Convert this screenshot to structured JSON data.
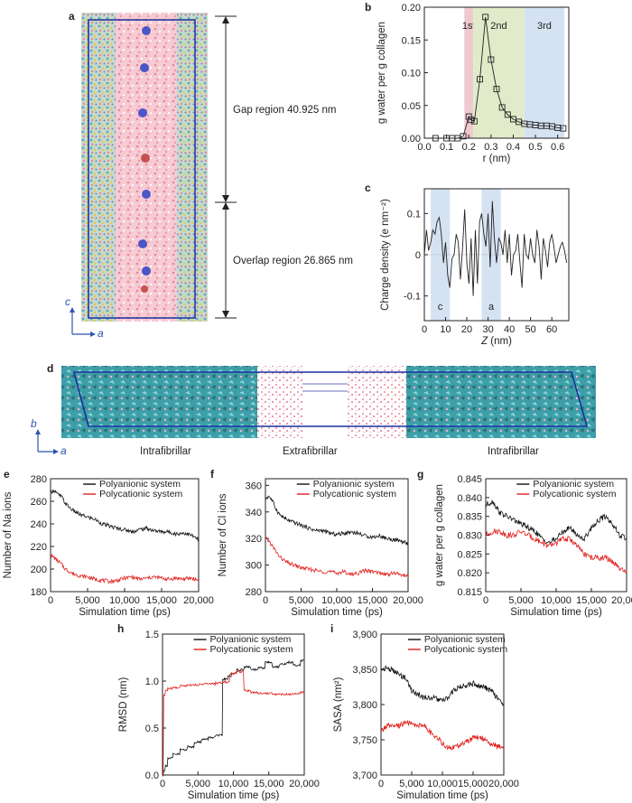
{
  "panel_labels": {
    "a": "a",
    "b": "b",
    "c": "c",
    "d": "d",
    "e": "e",
    "f": "f",
    "g": "g",
    "h": "h",
    "i": "i"
  },
  "panel_a": {
    "gap_label": "Gap region 40.925 nm",
    "overlap_label": "Overlap region 26.865 nm",
    "axis_c": "c",
    "axis_a": "a",
    "colors": {
      "water": "#f4b8c4",
      "protein": "#6ab3c9",
      "ion_blue": "#4a55c8",
      "ion_red": "#c85050",
      "box": "#1a2fa0"
    }
  },
  "panel_d": {
    "axis_b": "b",
    "axis_a": "a",
    "left_label": "Intrafibrillar",
    "mid_label": "Extrafibrillar",
    "right_label": "Intrafibrillar"
  },
  "chart_data": [
    {
      "id": "b",
      "type": "line",
      "xlabel": "r (nm)",
      "ylabel": "g water per g collagen",
      "xlim": [
        0,
        0.65
      ],
      "ylim": [
        0,
        0.2
      ],
      "xticks": [
        0.0,
        0.1,
        0.2,
        0.3,
        0.4,
        0.5,
        0.6
      ],
      "yticks": [
        0.0,
        0.05,
        0.1,
        0.15,
        0.2
      ],
      "regions": [
        {
          "label": "1st",
          "x0": 0.18,
          "x1": 0.22,
          "color": "#efc9d0"
        },
        {
          "label": "2nd",
          "x0": 0.22,
          "x1": 0.45,
          "color": "#e2ebc9"
        },
        {
          "label": "3rd",
          "x0": 0.45,
          "x1": 0.63,
          "color": "#d5e2f2"
        }
      ],
      "x": [
        0.05,
        0.1,
        0.125,
        0.15,
        0.175,
        0.2,
        0.21,
        0.225,
        0.25,
        0.275,
        0.3,
        0.325,
        0.35,
        0.375,
        0.4,
        0.425,
        0.45,
        0.475,
        0.5,
        0.525,
        0.55,
        0.575,
        0.6,
        0.625
      ],
      "values": [
        0.0,
        0.0,
        0.0,
        0.0,
        0.003,
        0.033,
        0.028,
        0.026,
        0.09,
        0.185,
        0.12,
        0.075,
        0.047,
        0.036,
        0.029,
        0.025,
        0.022,
        0.021,
        0.02,
        0.019,
        0.019,
        0.018,
        0.016,
        0.015
      ],
      "color": "#222222"
    },
    {
      "id": "c",
      "type": "line",
      "xlabel": "Z (nm)",
      "ylabel": "Charge density (e nm⁻²)",
      "xlim": [
        0,
        68
      ],
      "ylim": [
        -0.16,
        0.16
      ],
      "xticks": [
        0,
        10,
        20,
        30,
        40,
        50,
        60
      ],
      "yticks": [
        -0.1,
        0,
        0.1
      ],
      "regions": [
        {
          "label": "c",
          "x0": 3,
          "x1": 12,
          "color": "#d5e2f2"
        },
        {
          "label": "a",
          "x0": 27,
          "x1": 36,
          "color": "#d5e2f2"
        }
      ],
      "x": [
        0,
        1,
        2,
        3,
        4,
        5,
        6,
        7,
        8,
        9,
        10,
        11,
        12,
        13,
        14,
        15,
        16,
        17,
        18,
        19,
        20,
        21,
        22,
        23,
        24,
        25,
        26,
        27,
        28,
        29,
        30,
        31,
        32,
        33,
        34,
        35,
        36,
        37,
        38,
        39,
        40,
        41,
        42,
        43,
        44,
        45,
        46,
        47,
        48,
        49,
        50,
        51,
        52,
        53,
        54,
        55,
        56,
        57,
        58,
        59,
        60,
        61,
        62,
        63,
        64,
        65,
        66,
        67
      ],
      "values": [
        0.0,
        0.06,
        0.01,
        0.03,
        0.06,
        0.05,
        0.08,
        0.09,
        0.05,
        -0.02,
        0.03,
        -0.05,
        -0.08,
        -0.01,
        0.0,
        0.05,
        0.03,
        -0.06,
        0.02,
        0.11,
        -0.02,
        -0.07,
        0.04,
        -0.1,
        0.06,
        -0.07,
        0.08,
        0.1,
        0.05,
        0.02,
        0.1,
        -0.03,
        0.13,
        0.04,
        -0.02,
        0.04,
        0.03,
        0.0,
        0.06,
        -0.02,
        0.05,
        -0.05,
        0.0,
        0.01,
        0.05,
        -0.02,
        -0.08,
        0.05,
        0.0,
        -0.01,
        0.04,
        0.0,
        -0.02,
        0.06,
        0.02,
        -0.06,
        0.04,
        0.01,
        -0.03,
        0.03,
        0.05,
        0.02,
        -0.02,
        0.0,
        0.02,
        0.03,
        0.01,
        -0.02
      ],
      "color": "#222222"
    },
    {
      "id": "e",
      "type": "line",
      "xlabel": "Simulation time (ps)",
      "ylabel": "Number of Na ions",
      "xlim": [
        0,
        20000
      ],
      "ylim": [
        180,
        280
      ],
      "xticks": [
        0,
        5000,
        10000,
        15000,
        20000
      ],
      "xticklabels": [
        "0",
        "5,000",
        "10,000",
        "15,000",
        "20,000"
      ],
      "yticks": [
        180,
        200,
        220,
        240,
        260,
        280
      ],
      "series": [
        {
          "name": "Polyanionic system",
          "color": "#111111",
          "x": [
            0,
            500,
            1000,
            1500,
            2000,
            3000,
            4000,
            5000,
            6000,
            7000,
            8000,
            9000,
            10000,
            11000,
            12000,
            13000,
            14000,
            15000,
            16000,
            17000,
            18000,
            19000,
            19500,
            20000
          ],
          "values": [
            268,
            270,
            266,
            264,
            258,
            252,
            248,
            246,
            244,
            240,
            238,
            236,
            235,
            233,
            235,
            236,
            234,
            233,
            233,
            231,
            232,
            230,
            228,
            226
          ]
        },
        {
          "name": "Polycationic system",
          "color": "#e0201d",
          "x": [
            0,
            500,
            1000,
            1500,
            2000,
            3000,
            4000,
            5000,
            6000,
            7000,
            8000,
            9000,
            10000,
            11000,
            12000,
            13000,
            14000,
            15000,
            16000,
            17000,
            18000,
            19000,
            19500,
            20000
          ],
          "values": [
            212,
            210,
            207,
            204,
            200,
            196,
            194,
            193,
            191,
            190,
            189,
            190,
            192,
            193,
            191,
            192,
            193,
            192,
            191,
            192,
            191,
            192,
            191,
            190
          ]
        }
      ]
    },
    {
      "id": "f",
      "type": "line",
      "xlabel": "Simulation time (ps)",
      "ylabel": "Number of Cl ions",
      "xlim": [
        0,
        20000
      ],
      "ylim": [
        280,
        365
      ],
      "xticks": [
        0,
        5000,
        10000,
        15000,
        20000
      ],
      "xticklabels": [
        "0",
        "5,000",
        "10,000",
        "15,000",
        "20,000"
      ],
      "yticks": [
        280,
        300,
        320,
        340,
        360
      ],
      "series": [
        {
          "name": "Polyanionic system",
          "color": "#111111",
          "x": [
            0,
            500,
            1000,
            1500,
            2000,
            3000,
            4000,
            5000,
            6000,
            7000,
            8000,
            9000,
            10000,
            11000,
            12000,
            13000,
            14000,
            15000,
            16000,
            17000,
            18000,
            19000,
            19500,
            20000
          ],
          "values": [
            350,
            352,
            348,
            342,
            338,
            334,
            332,
            330,
            328,
            326,
            326,
            324,
            323,
            324,
            325,
            324,
            322,
            321,
            322,
            320,
            319,
            318,
            317,
            316
          ]
        },
        {
          "name": "Polycationic system",
          "color": "#e0201d",
          "x": [
            0,
            500,
            1000,
            1500,
            2000,
            3000,
            4000,
            5000,
            6000,
            7000,
            8000,
            9000,
            10000,
            11000,
            12000,
            13000,
            14000,
            15000,
            16000,
            17000,
            18000,
            19000,
            19500,
            20000
          ],
          "values": [
            320,
            318,
            314,
            310,
            306,
            302,
            300,
            298,
            297,
            296,
            295,
            295,
            294,
            295,
            293,
            294,
            296,
            295,
            294,
            293,
            294,
            293,
            292,
            292
          ]
        }
      ]
    },
    {
      "id": "g",
      "type": "line",
      "xlabel": "Simulation time (ps)",
      "ylabel": "g water per g collagen",
      "xlim": [
        0,
        20000
      ],
      "ylim": [
        0.815,
        0.845
      ],
      "xticks": [
        0,
        5000,
        10000,
        15000,
        20000
      ],
      "xticklabels": [
        "0",
        "5,000",
        "10,000",
        "15,000",
        "20,000"
      ],
      "yticks": [
        0.815,
        0.82,
        0.825,
        0.83,
        0.835,
        0.84,
        0.845
      ],
      "series": [
        {
          "name": "Polyanionic system",
          "color": "#111111",
          "x": [
            0,
            1000,
            2000,
            3000,
            4000,
            5000,
            6000,
            7000,
            8000,
            9000,
            10000,
            11000,
            12000,
            13000,
            14000,
            15000,
            16000,
            17000,
            18000,
            19000,
            20000
          ],
          "values": [
            0.838,
            0.839,
            0.836,
            0.835,
            0.834,
            0.833,
            0.832,
            0.831,
            0.829,
            0.828,
            0.829,
            0.831,
            0.832,
            0.83,
            0.829,
            0.832,
            0.834,
            0.835,
            0.833,
            0.83,
            0.829
          ]
        },
        {
          "name": "Polycationic system",
          "color": "#e0201d",
          "x": [
            0,
            1000,
            2000,
            3000,
            4000,
            5000,
            6000,
            7000,
            8000,
            9000,
            10000,
            11000,
            12000,
            13000,
            14000,
            15000,
            16000,
            17000,
            18000,
            19000,
            20000
          ],
          "values": [
            0.83,
            0.831,
            0.831,
            0.83,
            0.83,
            0.831,
            0.83,
            0.829,
            0.828,
            0.827,
            0.828,
            0.829,
            0.829,
            0.827,
            0.825,
            0.824,
            0.824,
            0.824,
            0.823,
            0.821,
            0.82
          ]
        }
      ]
    },
    {
      "id": "h",
      "type": "line",
      "xlabel": "Simulation time (ps)",
      "ylabel": "RMSD (nm)",
      "xlim": [
        0,
        20000
      ],
      "ylim": [
        0,
        1.5
      ],
      "xticks": [
        0,
        5000,
        10000,
        15000,
        20000
      ],
      "xticklabels": [
        "0",
        "5,000",
        "10,000",
        "15,000",
        "20,000"
      ],
      "yticks": [
        0,
        0.5,
        1.0,
        1.5
      ],
      "yticklabels": [
        "0.0",
        "0.5",
        "1.0",
        "1.5"
      ],
      "series": [
        {
          "name": "Polyanionic system",
          "color": "#111111",
          "x": [
            0,
            200,
            500,
            1000,
            2000,
            3000,
            4000,
            5000,
            6000,
            7000,
            8000,
            9000,
            9500,
            10000,
            11000,
            12000,
            13000,
            14000,
            15000,
            16000,
            17000,
            18000,
            19000,
            20000
          ],
          "values": [
            0.0,
            0.05,
            0.1,
            0.18,
            0.22,
            0.27,
            0.3,
            0.35,
            0.38,
            0.4,
            0.42,
            1.02,
            1.05,
            1.08,
            1.12,
            1.15,
            1.12,
            1.14,
            1.2,
            1.15,
            1.18,
            1.2,
            1.17,
            1.22
          ]
        },
        {
          "name": "Polycationic system",
          "color": "#e0201d",
          "x": [
            0,
            200,
            500,
            1000,
            2000,
            3000,
            4000,
            5000,
            6000,
            7000,
            8000,
            9000,
            10000,
            11000,
            12000,
            13000,
            14000,
            15000,
            16000,
            17000,
            18000,
            19000,
            20000
          ],
          "values": [
            0.0,
            0.85,
            0.9,
            0.92,
            0.93,
            0.95,
            0.96,
            0.96,
            0.97,
            0.97,
            0.98,
            0.99,
            1.08,
            1.1,
            0.9,
            0.88,
            0.87,
            0.87,
            0.86,
            0.86,
            0.86,
            0.87,
            0.88
          ]
        }
      ]
    },
    {
      "id": "i",
      "type": "line",
      "xlabel": "Simulation time (ps)",
      "ylabel": "SASA (nm²)",
      "xlim": [
        0,
        20000
      ],
      "ylim": [
        3700,
        3900
      ],
      "xticks": [
        0,
        5000,
        10000,
        15000,
        20000
      ],
      "xticklabels": [
        "0",
        "5,000",
        "10,000",
        "15,000",
        "20,000"
      ],
      "yticks": [
        3700,
        3750,
        3800,
        3850,
        3900
      ],
      "yticklabels": [
        "3,700",
        "3,750",
        "3,800",
        "3,850",
        "3,900"
      ],
      "series": [
        {
          "name": "Polyanionic system",
          "color": "#111111",
          "x": [
            0,
            1000,
            2000,
            3000,
            4000,
            5000,
            6000,
            7000,
            8000,
            9000,
            10000,
            11000,
            12000,
            13000,
            14000,
            15000,
            16000,
            17000,
            18000,
            19000,
            20000
          ],
          "values": [
            3850,
            3852,
            3848,
            3842,
            3838,
            3820,
            3815,
            3810,
            3810,
            3808,
            3805,
            3810,
            3822,
            3825,
            3828,
            3830,
            3826,
            3824,
            3820,
            3808,
            3800
          ]
        },
        {
          "name": "Polycationic system",
          "color": "#e0201d",
          "x": [
            0,
            1000,
            2000,
            3000,
            4000,
            5000,
            6000,
            7000,
            8000,
            9000,
            10000,
            11000,
            12000,
            13000,
            14000,
            15000,
            16000,
            17000,
            18000,
            19000,
            20000
          ],
          "values": [
            3762,
            3770,
            3768,
            3770,
            3775,
            3772,
            3770,
            3772,
            3760,
            3755,
            3745,
            3738,
            3740,
            3742,
            3748,
            3752,
            3754,
            3750,
            3745,
            3740,
            3738
          ]
        }
      ]
    }
  ]
}
